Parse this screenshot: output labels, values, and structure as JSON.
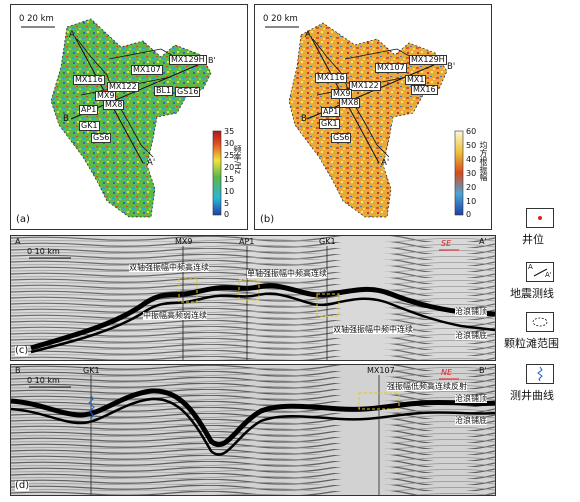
{
  "panel_a": {
    "label": "(a)",
    "scale": "0       20 km",
    "cb_title": "频率/Hz",
    "cb_ticks": [
      "35",
      "30",
      "25",
      "20",
      "15",
      "10",
      "5",
      "0"
    ],
    "colors": {
      "lo": "#1f4fb5",
      "mid1": "#2bb6d8",
      "mid2": "#5dbb4a",
      "mid3": "#f2e23a",
      "hi": "#d8321e"
    }
  },
  "panel_b": {
    "label": "(b)",
    "scale": "0       20 km",
    "cb_title": "均方根振幅",
    "cb_ticks": [
      "60",
      "50",
      "40",
      "30",
      "20",
      "10",
      "0"
    ]
  },
  "wells_a": [
    "MX107",
    "MX129H",
    "B'",
    "MX116",
    "MX122",
    "BL1",
    "GS16",
    "MX9",
    "MX8",
    "AP1",
    "GK1",
    "GS6",
    "A",
    "B",
    "A'"
  ],
  "wells_b": [
    "A",
    "MX107",
    "MX129H",
    "B'",
    "MX116",
    "MX122",
    "MX1",
    "MX16",
    "MX9",
    "MX8",
    "AP1",
    "GK1",
    "B",
    "GS6",
    "A'"
  ],
  "panel_c": {
    "label": "(c)",
    "end_left": "A",
    "end_right": "A'",
    "scale": "0      10 km",
    "compass": "SE",
    "wells": [
      "MX9",
      "AP1",
      "GK1"
    ],
    "annotations": [
      "双轴强振幅中频高连续",
      "单轴强振幅中频高连续",
      "中振幅高频弱连续",
      "双轴强振幅中频中连续",
      "沧浪铺顶",
      "沧浪铺底"
    ]
  },
  "panel_d": {
    "label": "(d)",
    "end_left": "B",
    "end_right": "B'",
    "scale": "0      10 km",
    "compass": "NE",
    "wells": [
      "GK1",
      "MX107"
    ],
    "annotations": [
      "强振幅低频高连续反射",
      "沧浪铺顶",
      "沧浪铺底"
    ]
  },
  "legend": {
    "items": [
      "井位",
      "地震测线",
      "颗粒滩范围",
      "测井曲线"
    ],
    "line_ends": [
      "A",
      "A'"
    ]
  }
}
